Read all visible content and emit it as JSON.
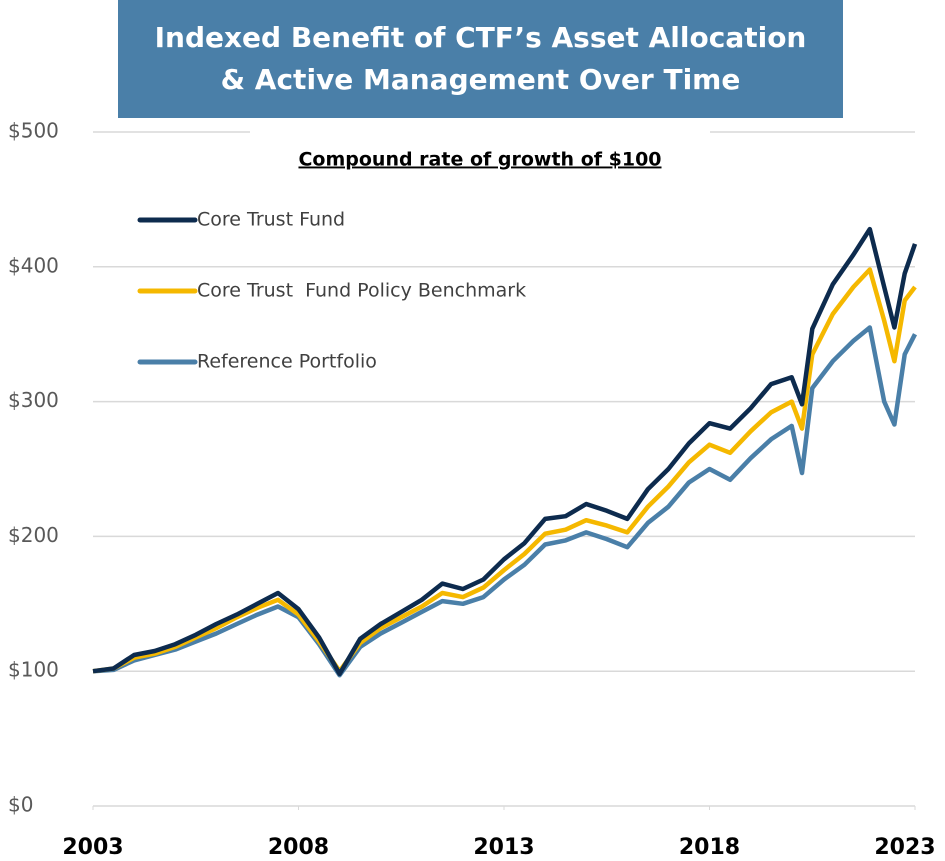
{
  "chart_data": {
    "type": "line",
    "title": "Indexed Benefit of CTF’s Asset Allocation & Active Management Over Time",
    "subtitle": "Compound rate of growth of $100",
    "x": [
      2003,
      2003.5,
      2004,
      2004.5,
      2005,
      2005.5,
      2006,
      2006.5,
      2007,
      2007.5,
      2008,
      2008.5,
      2009,
      2009.5,
      2010,
      2010.5,
      2011,
      2011.5,
      2012,
      2012.5,
      2013,
      2013.5,
      2014,
      2014.5,
      2015,
      2015.5,
      2016,
      2016.5,
      2017,
      2017.5,
      2018,
      2018.5,
      2019,
      2019.5,
      2020,
      2020.25,
      2020.5,
      2021,
      2021.5,
      2021.9,
      2022.25,
      2022.5,
      2022.75,
      2023
    ],
    "series": [
      {
        "name": "Core Trust Fund",
        "color": "#0d2b4e",
        "values": [
          100,
          102,
          112,
          115,
          120,
          127,
          135,
          142,
          150,
          158,
          146,
          125,
          98,
          124,
          135,
          144,
          153,
          165,
          161,
          168,
          183,
          195,
          213,
          215,
          224,
          219,
          213,
          235,
          250,
          269,
          284,
          280,
          295,
          313,
          318,
          298,
          354,
          387,
          409,
          428,
          385,
          355,
          395,
          417
        ]
      },
      {
        "name": "Core Trust  Fund Policy Benchmark",
        "color": "#f5b800",
        "values": [
          100,
          102,
          110,
          113,
          118,
          125,
          132,
          140,
          147,
          153,
          142,
          122,
          100,
          121,
          132,
          140,
          148,
          158,
          155,
          162,
          175,
          187,
          202,
          205,
          212,
          208,
          203,
          222,
          237,
          255,
          268,
          262,
          278,
          292,
          300,
          280,
          335,
          365,
          385,
          398,
          360,
          330,
          375,
          385
        ]
      },
      {
        "name": "Reference Portfolio",
        "color": "#4a7fa8",
        "values": [
          100,
          101,
          108,
          112,
          116,
          122,
          128,
          135,
          142,
          148,
          140,
          120,
          97,
          118,
          128,
          136,
          144,
          152,
          150,
          155,
          168,
          179,
          194,
          197,
          203,
          198,
          192,
          210,
          222,
          240,
          250,
          242,
          258,
          272,
          282,
          247,
          310,
          330,
          345,
          355,
          300,
          283,
          335,
          350
        ]
      }
    ],
    "xlim": [
      2003,
      2023
    ],
    "xticks": [
      2003,
      2008,
      2013,
      2018,
      2023
    ],
    "ylim": [
      0,
      500
    ],
    "yticks": [
      {
        "value": 0,
        "label": "$0"
      },
      {
        "value": 100,
        "label": "$100"
      },
      {
        "value": 200,
        "label": "$200"
      },
      {
        "value": 300,
        "label": "$300"
      },
      {
        "value": 400,
        "label": "$400"
      },
      {
        "value": 500,
        "label": "$500"
      }
    ],
    "grid": true,
    "legend": "upper left"
  }
}
